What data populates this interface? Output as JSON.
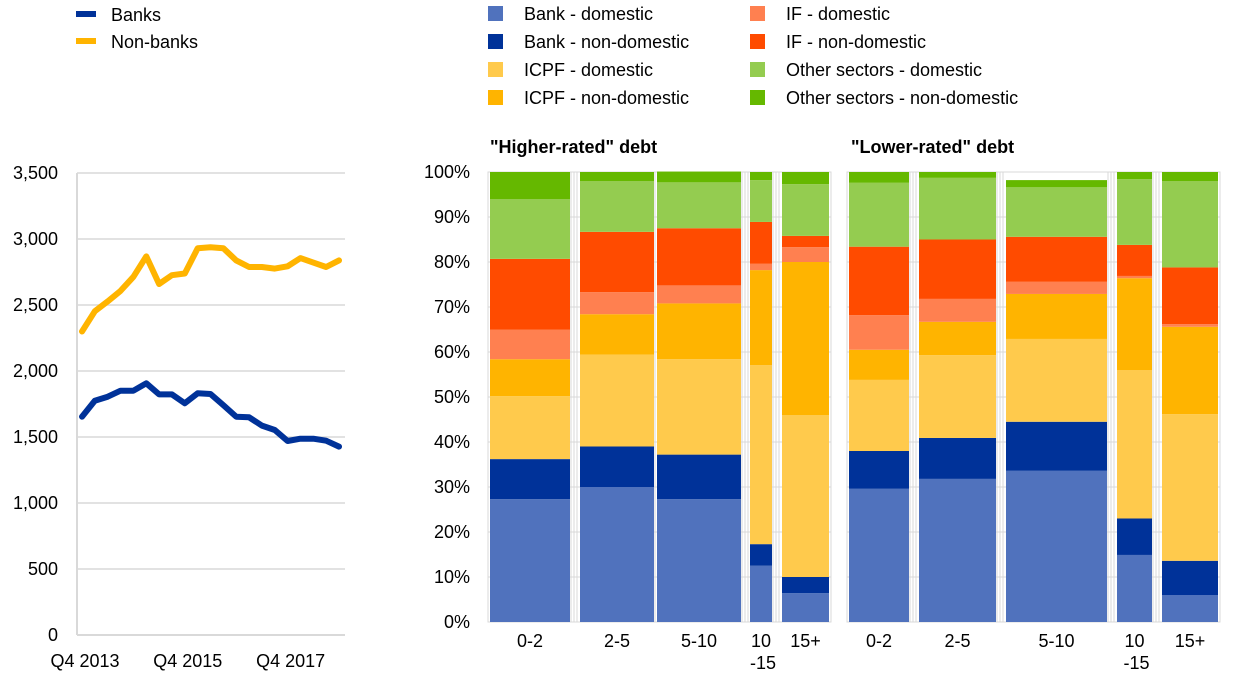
{
  "chart_data": [
    {
      "type": "line",
      "title": "",
      "xlabel": "",
      "ylabel": "",
      "ylim": [
        0,
        3500
      ],
      "yticks": [
        0,
        500,
        1000,
        1500,
        2000,
        2500,
        3000,
        3500
      ],
      "ytick_labels": [
        "0",
        "500",
        "1,000",
        "1,500",
        "2,000",
        "2,500",
        "3,000",
        "3,500"
      ],
      "x_tick_labels": [
        "Q4 2013",
        "Q4 2015",
        "Q4 2017"
      ],
      "x_tick_indices": [
        0,
        8,
        16
      ],
      "grid": true,
      "legend_position": "top-left",
      "series": [
        {
          "name": "Banks",
          "color": "#003299",
          "values": [
            1654,
            1775,
            1805,
            1851,
            1851,
            1907,
            1823,
            1823,
            1755,
            1831,
            1826,
            1742,
            1654,
            1649,
            1586,
            1553,
            1470,
            1487,
            1487,
            1472,
            1427
          ]
        },
        {
          "name": "Non-banks",
          "color": "#FFB400",
          "values": [
            2299,
            2452,
            2527,
            2607,
            2714,
            2868,
            2659,
            2726,
            2739,
            2930,
            2937,
            2930,
            2838,
            2788,
            2788,
            2776,
            2793,
            2855,
            2821,
            2788,
            2838
          ]
        }
      ]
    },
    {
      "type": "bar",
      "stacked": true,
      "title": "\"Higher-rated\" debt",
      "ylim": [
        0,
        100
      ],
      "yticks": [
        "0%",
        "10%",
        "20%",
        "30%",
        "40%",
        "50%",
        "60%",
        "70%",
        "80%",
        "90%",
        "100%"
      ],
      "categories": [
        "0-2",
        "2-5",
        "5-10",
        "10\n-15",
        "15+"
      ],
      "category_labels": [
        [
          "0-2"
        ],
        [
          "2-5"
        ],
        [
          "5-10"
        ],
        [
          "10",
          "-15"
        ],
        [
          "15+"
        ]
      ],
      "legend_position": "top",
      "series": [
        {
          "name": "Bank - domestic",
          "color": "#5072BD",
          "values": [
            27.3,
            30.0,
            27.3,
            12.5,
            6.4
          ]
        },
        {
          "name": "Bank - non-domestic",
          "color": "#003299",
          "values": [
            8.9,
            9.0,
            9.9,
            4.8,
            3.6
          ]
        },
        {
          "name": "ICPF - domestic",
          "color": "#FFCA4C",
          "values": [
            14.0,
            20.4,
            21.2,
            39.8,
            36.0
          ]
        },
        {
          "name": "ICPF - non-domestic",
          "color": "#FFB400",
          "values": [
            8.2,
            9.0,
            12.4,
            21.1,
            34.0
          ]
        },
        {
          "name": "IF - domestic",
          "color": "#FF8050",
          "values": [
            6.6,
            4.9,
            4.0,
            1.4,
            3.3
          ]
        },
        {
          "name": "IF - non-domestic",
          "color": "#FF4B00",
          "values": [
            15.7,
            13.4,
            12.7,
            9.3,
            2.5
          ]
        },
        {
          "name": "Other sectors - domestic",
          "color": "#94CC50",
          "values": [
            13.3,
            11.3,
            10.2,
            9.3,
            11.5
          ]
        },
        {
          "name": "Other sectors - non-domestic",
          "color": "#65B800",
          "values": [
            6.0,
            2.0,
            2.4,
            1.8,
            2.7
          ]
        }
      ]
    },
    {
      "type": "bar",
      "stacked": true,
      "title": "\"Lower-rated\" debt",
      "ylim": [
        0,
        100
      ],
      "categories": [
        "0-2",
        "2-5",
        "5-10",
        "10\n-15",
        "15+"
      ],
      "category_labels": [
        [
          "0-2"
        ],
        [
          "2-5"
        ],
        [
          "5-10"
        ],
        [
          "10",
          "-15"
        ],
        [
          "15+"
        ]
      ],
      "series": [
        {
          "name": "Bank - domestic",
          "color": "#5072BD",
          "values": [
            29.6,
            31.8,
            33.6,
            14.9,
            6.0
          ]
        },
        {
          "name": "Bank - non-domestic",
          "color": "#003299",
          "values": [
            8.4,
            9.1,
            10.9,
            8.1,
            7.6
          ]
        },
        {
          "name": "ICPF - domestic",
          "color": "#FFCA4C",
          "values": [
            15.8,
            18.4,
            18.4,
            33.0,
            32.6
          ]
        },
        {
          "name": "ICPF - non-domestic",
          "color": "#FFB400",
          "values": [
            6.7,
            7.4,
            10.0,
            20.4,
            19.4
          ]
        },
        {
          "name": "IF - domestic",
          "color": "#FF8050",
          "values": [
            7.7,
            5.1,
            2.7,
            0.5,
            0.6
          ]
        },
        {
          "name": "IF - non-domestic",
          "color": "#FF4B00",
          "values": [
            15.2,
            13.2,
            10.0,
            6.9,
            12.6
          ]
        },
        {
          "name": "Other sectors - domestic",
          "color": "#94CC50",
          "values": [
            14.2,
            13.7,
            11.0,
            14.6,
            19.2
          ]
        },
        {
          "name": "Other sectors - non-domestic",
          "color": "#65B800",
          "values": [
            2.4,
            1.3,
            1.6,
            1.6,
            2.0
          ]
        }
      ]
    }
  ]
}
